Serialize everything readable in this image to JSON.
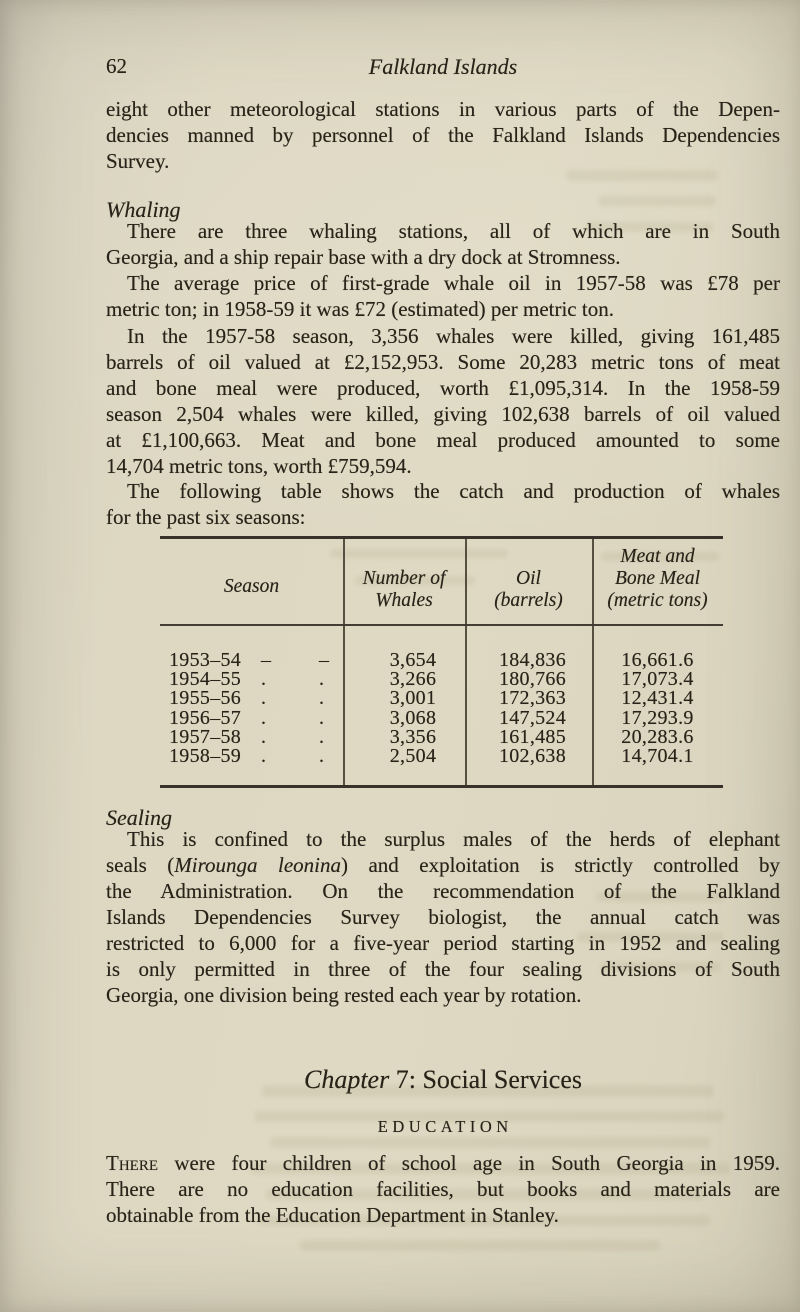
{
  "page": {
    "number": "62",
    "running_title": "Falkland Islands"
  },
  "intro": {
    "lines": [
      "eight other meteorological stations in various parts of the Depen-",
      "dencies manned by personnel of the Falkland Islands Dependencies",
      "Survey."
    ]
  },
  "whaling": {
    "heading": "Whaling",
    "p1": {
      "lines": [
        "There are three whaling stations, all of which are in South",
        "Georgia, and a ship repair base with a dry dock at Stromness."
      ]
    },
    "p2": {
      "lines": [
        "The average price of first-grade whale oil in 1957-58 was £78 per",
        "metric ton; in 1958-59 it was £72 (estimated) per metric ton."
      ]
    },
    "p3": {
      "lines": [
        "In the 1957-58 season, 3,356 whales were killed, giving 161,485",
        "barrels of oil valued at £2,152,953. Some 20,283 metric tons of meat",
        "and bone meal were produced, worth £1,095,314. In the 1958-59",
        "season 2,504 whales were killed, giving 102,638 barrels of oil valued",
        "at £1,100,663.  Meat and bone meal produced amounted to some",
        "14,704 metric tons, worth £759,594."
      ]
    },
    "p4": {
      "lines": [
        "The following table shows the catch and production of whales",
        "for the past six seasons:"
      ]
    }
  },
  "table": {
    "headers": {
      "season": [
        "Season"
      ],
      "whales": [
        "Number of",
        "Whales"
      ],
      "oil": [
        "Oil",
        "(barrels)"
      ],
      "meal": [
        "Meat and",
        "Bone Meal",
        "(metric tons)"
      ]
    },
    "rows": [
      {
        "season": "1953–54",
        "leader": "–",
        "whales": "3,654",
        "oil": "184,836",
        "meal": "16,661.6"
      },
      {
        "season": "1954–55",
        "leader": ".",
        "whales": "3,266",
        "oil": "180,766",
        "meal": "17,073.4"
      },
      {
        "season": "1955–56",
        "leader": ".",
        "whales": "3,001",
        "oil": "172,363",
        "meal": "12,431.4"
      },
      {
        "season": "1956–57",
        "leader": ".",
        "whales": "3,068",
        "oil": "147,524",
        "meal": "17,293.9"
      },
      {
        "season": "1957–58",
        "leader": ".",
        "whales": "3,356",
        "oil": "161,485",
        "meal": "20,283.6"
      },
      {
        "season": "1958–59",
        "leader": ".",
        "whales": "2,504",
        "oil": "102,638",
        "meal": "14,704.1"
      }
    ]
  },
  "sealing": {
    "heading": "Sealing",
    "p": {
      "lines": [
        "This is confined to the surplus males of the herds of elephant",
        [
          {
            "t": "seals ("
          },
          {
            "t": "Mirounga leonina",
            "style": "italic"
          },
          {
            "t": ") and exploitation is strictly controlled by"
          }
        ],
        "the Administration. On the recommendation of the Falkland",
        "Islands Dependencies Survey biologist, the annual catch was",
        "restricted to 6,000 for a five-year period starting in 1952 and sealing",
        "is only permitted in three of the four sealing divisions of South",
        "Georgia, one division being rested each year by rotation."
      ]
    }
  },
  "chapter": {
    "title": [
      {
        "t": "Chapter ",
        "style": "italic"
      },
      {
        "t": "7:  Social Services"
      }
    ],
    "subheading": "EDUCATION",
    "p": {
      "lines": [
        [
          {
            "t": "There",
            "style": "smallcaps"
          },
          {
            "t": " were four children of school age in South Georgia in 1959."
          }
        ],
        "There are no education facilities, but books and materials are",
        "obtainable from the Education Department in Stanley."
      ]
    }
  }
}
